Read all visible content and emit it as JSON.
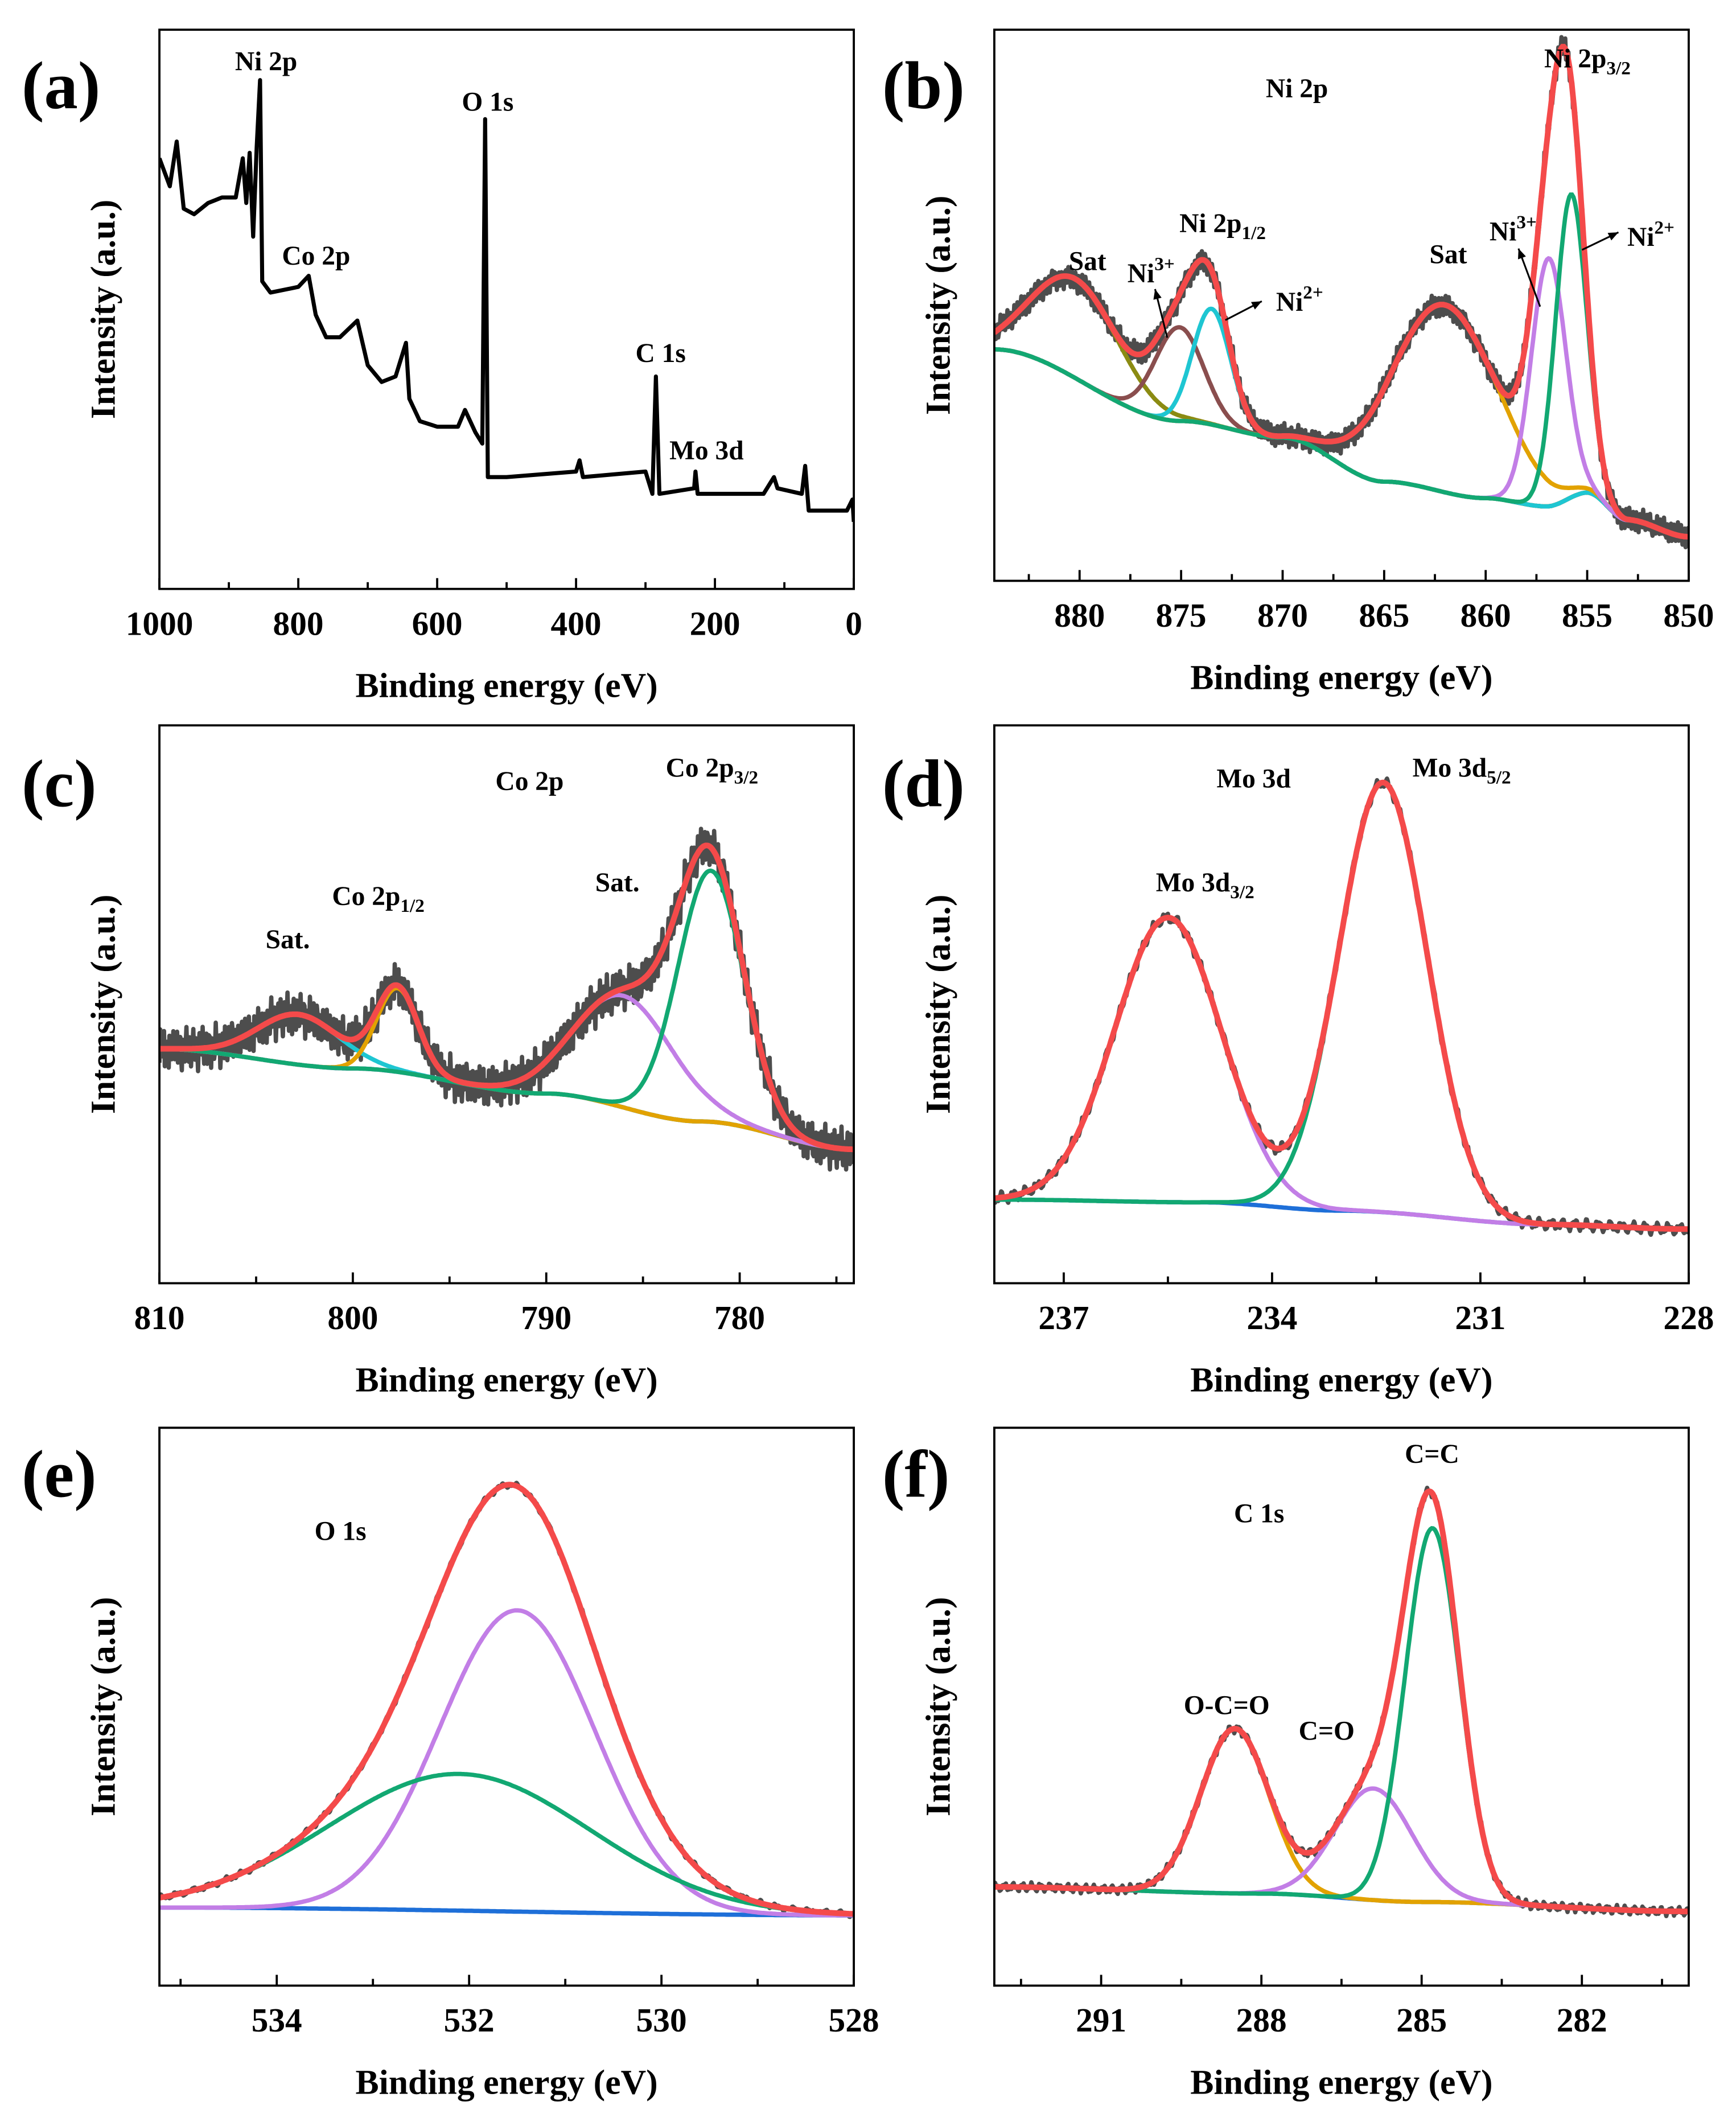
{
  "chart_data": [
    {
      "panel": "(a)",
      "type": "line",
      "xlabel": "Binding energy (eV)",
      "ylabel": "Intensity (a.u.)",
      "xlim": [
        1000,
        0
      ],
      "ylim": [
        0,
        100
      ],
      "y_ticks_shown": false,
      "xticks": [
        1000,
        800,
        600,
        400,
        200,
        0
      ],
      "minor_step": 100,
      "line_color": "#000000",
      "x": [
        1000,
        985,
        975,
        965,
        950,
        930,
        910,
        890,
        880,
        875,
        870,
        865,
        860,
        855,
        852,
        840,
        800,
        785,
        775,
        760,
        740,
        715,
        700,
        680,
        660,
        645,
        640,
        625,
        600,
        570,
        560,
        545,
        535,
        531,
        527,
        500,
        400,
        395,
        390,
        300,
        290,
        285,
        280,
        230,
        228,
        225,
        130,
        115,
        110,
        75,
        70,
        65,
        30,
        10,
        2,
        0
      ],
      "y": [
        77,
        72,
        80,
        68,
        67,
        69,
        70,
        70,
        77,
        69,
        78,
        63,
        79,
        91,
        55,
        53,
        54,
        56,
        49,
        45,
        45,
        48,
        40,
        37,
        38,
        44,
        34,
        30,
        29,
        29,
        32,
        28,
        26,
        84,
        20,
        20,
        21,
        23,
        20,
        21,
        17,
        38,
        17,
        18,
        21,
        17,
        17,
        20,
        18,
        17,
        22,
        14,
        14,
        14,
        16,
        12
      ],
      "annotations": [
        {
          "text": "Ni 2p"
        },
        {
          "text": "O 1s"
        },
        {
          "text": "Co 2p"
        },
        {
          "text": "C 1s"
        },
        {
          "text": "Mo 3d"
        }
      ]
    },
    {
      "panel": "(b)",
      "type": "line",
      "fit": "gaussian peak deconvolution",
      "xlabel": "Binding energy (eV)",
      "ylabel": "Intensity (a.u.)",
      "xlim": [
        884.2,
        850
      ],
      "ylim": [
        0,
        100
      ],
      "y_ticks_shown": false,
      "xticks": [
        880,
        875,
        870,
        865,
        860,
        855,
        850
      ],
      "minor_step": 2.5,
      "raw_color": "#4d4d4d",
      "envelope_color": "#f44a4a",
      "background": {
        "color": "#8b8b12",
        "points": [
          [
            884.2,
            42
          ],
          [
            875,
            29
          ],
          [
            870,
            26
          ],
          [
            865,
            18
          ],
          [
            860,
            15
          ],
          [
            857,
            13.5
          ],
          [
            855,
            16
          ],
          [
            853,
            11
          ],
          [
            850,
            8
          ]
        ]
      },
      "components": [
        {
          "center": 880.2,
          "height": 18,
          "fwhm": 5.0,
          "color": "#8b8b12"
        },
        {
          "center": 875.1,
          "height": 17,
          "fwhm": 2.8,
          "color": "#8a4e4e"
        },
        {
          "center": 873.5,
          "height": 21,
          "fwhm": 2.2,
          "color": "#1ec6d2"
        },
        {
          "center": 862.0,
          "height": 34,
          "fwhm": 6.0,
          "color": "#e2a200"
        },
        {
          "center": 856.9,
          "height": 45,
          "fwhm": 2.0,
          "color": "#c27ee6"
        },
        {
          "center": 855.8,
          "height": 55,
          "fwhm": 1.8,
          "color": "#12a872"
        }
      ],
      "annotations": [
        {
          "text": "Ni 2p"
        },
        {
          "text": "Ni 2p",
          "sub": "3/2"
        },
        {
          "text": "Ni 2p",
          "sub": "1/2"
        },
        {
          "text": "Sat"
        },
        {
          "text": "Sat"
        },
        {
          "text": "Ni",
          "sup": "3+"
        },
        {
          "text": "Ni",
          "sup": "2+"
        },
        {
          "text": "Ni",
          "sup": "3+"
        },
        {
          "text": "Ni",
          "sup": "2+"
        }
      ]
    },
    {
      "panel": "(c)",
      "type": "line",
      "fit": "gaussian peak deconvolution",
      "xlabel": "Binding energy (eV)",
      "ylabel": "Intensity (a.u.)",
      "xlim": [
        810,
        774.1
      ],
      "ylim": [
        0,
        100
      ],
      "y_ticks_shown": false,
      "xticks": [
        810,
        800,
        790,
        780
      ],
      "minor_step": 5,
      "raw_color": "#4d4d4d",
      "envelope_color": "#f44a4a",
      "background": {
        "color": "#1e6fd8",
        "points": [
          [
            810,
            42
          ],
          [
            800,
            38.5
          ],
          [
            790,
            34
          ],
          [
            782,
            29
          ],
          [
            774.1,
            24
          ]
        ]
      },
      "components": [
        {
          "center": 802.8,
          "height": 9,
          "fwhm": 5.0,
          "color": "#1ec6d2"
        },
        {
          "center": 797.7,
          "height": 15,
          "fwhm": 2.5,
          "color": "#e2a200"
        },
        {
          "center": 786.0,
          "height": 20,
          "fwhm": 6.0,
          "color": "#c27ee6"
        },
        {
          "center": 781.5,
          "height": 45,
          "fwhm": 4.0,
          "color": "#12a872"
        }
      ],
      "annotations": [
        {
          "text": "Co 2p"
        },
        {
          "text": "Co 2p",
          "sub": "3/2"
        },
        {
          "text": "Co 2p",
          "sub": "1/2"
        },
        {
          "text": "Sat."
        },
        {
          "text": "Sat."
        }
      ]
    },
    {
      "panel": "(d)",
      "type": "line",
      "fit": "gaussian peak deconvolution",
      "xlabel": "Binding energy (eV)",
      "ylabel": "Intensity (a.u.)",
      "xlim": [
        238,
        228
      ],
      "ylim": [
        0,
        100
      ],
      "y_ticks_shown": false,
      "xticks": [
        237,
        234,
        231,
        228
      ],
      "minor_step": 1.5,
      "raw_color": "#4d4d4d",
      "envelope_color": "#f44a4a",
      "background": {
        "color": "#1e6fd8",
        "points": [
          [
            238,
            15
          ],
          [
            235,
            14.5
          ],
          [
            233,
            13
          ],
          [
            230,
            10.5
          ],
          [
            228,
            9.7
          ]
        ]
      },
      "components": [
        {
          "center": 235.5,
          "height": 51,
          "fwhm": 1.8,
          "color": "#c27ee6"
        },
        {
          "center": 232.4,
          "height": 77,
          "fwhm": 1.5,
          "color": "#12a872"
        }
      ],
      "annotations": [
        {
          "text": "Mo 3d"
        },
        {
          "text": "Mo 3d",
          "sub": "5/2"
        },
        {
          "text": "Mo 3d",
          "sub": "3/2"
        }
      ]
    },
    {
      "panel": "(e)",
      "type": "line",
      "fit": "gaussian peak deconvolution",
      "xlabel": "Binding energy (eV)",
      "ylabel": "Intensity (a.u.)",
      "xlim": [
        535.22,
        528
      ],
      "ylim": [
        0,
        100
      ],
      "y_ticks_shown": false,
      "xticks": [
        534,
        532,
        530,
        528
      ],
      "minor_step": 1,
      "raw_color": "#4d4d4d",
      "envelope_color": "#f44a4a",
      "background": {
        "color": "#1e6fd8",
        "points": [
          [
            535.22,
            14
          ],
          [
            528,
            12.6
          ]
        ]
      },
      "components": [
        {
          "center": 531.5,
          "height": 54,
          "fwhm": 1.9,
          "color": "#c27ee6"
        },
        {
          "center": 532.1,
          "height": 24.5,
          "fwhm": 3.2,
          "color": "#12a872"
        }
      ],
      "annotations": [
        {
          "text": "O 1s"
        }
      ]
    },
    {
      "panel": "(f)",
      "type": "line",
      "fit": "gaussian peak deconvolution",
      "xlabel": "Binding energy (eV)",
      "ylabel": "Intensity (a.u.)",
      "xlim": [
        293,
        280
      ],
      "ylim": [
        0,
        100
      ],
      "y_ticks_shown": false,
      "xticks": [
        291,
        288,
        285,
        282
      ],
      "minor_step": 1.5,
      "raw_color": "#4d4d4d",
      "envelope_color": "#f44a4a",
      "background": {
        "color": "#1e6fd8",
        "points": [
          [
            293,
            17.7
          ],
          [
            288,
            16.5
          ],
          [
            285,
            15
          ],
          [
            280,
            13.3
          ]
        ]
      },
      "components": [
        {
          "center": 288.5,
          "height": 29.5,
          "fwhm": 1.5,
          "color": "#e2a200"
        },
        {
          "center": 285.9,
          "height": 20,
          "fwhm": 1.7,
          "color": "#c27ee6"
        },
        {
          "center": 284.8,
          "height": 67,
          "fwhm": 1.2,
          "color": "#12a872"
        }
      ],
      "annotations": [
        {
          "text": "C 1s"
        },
        {
          "text": "C=C"
        },
        {
          "text": "O-C=O"
        },
        {
          "text": "C=O"
        }
      ]
    }
  ]
}
